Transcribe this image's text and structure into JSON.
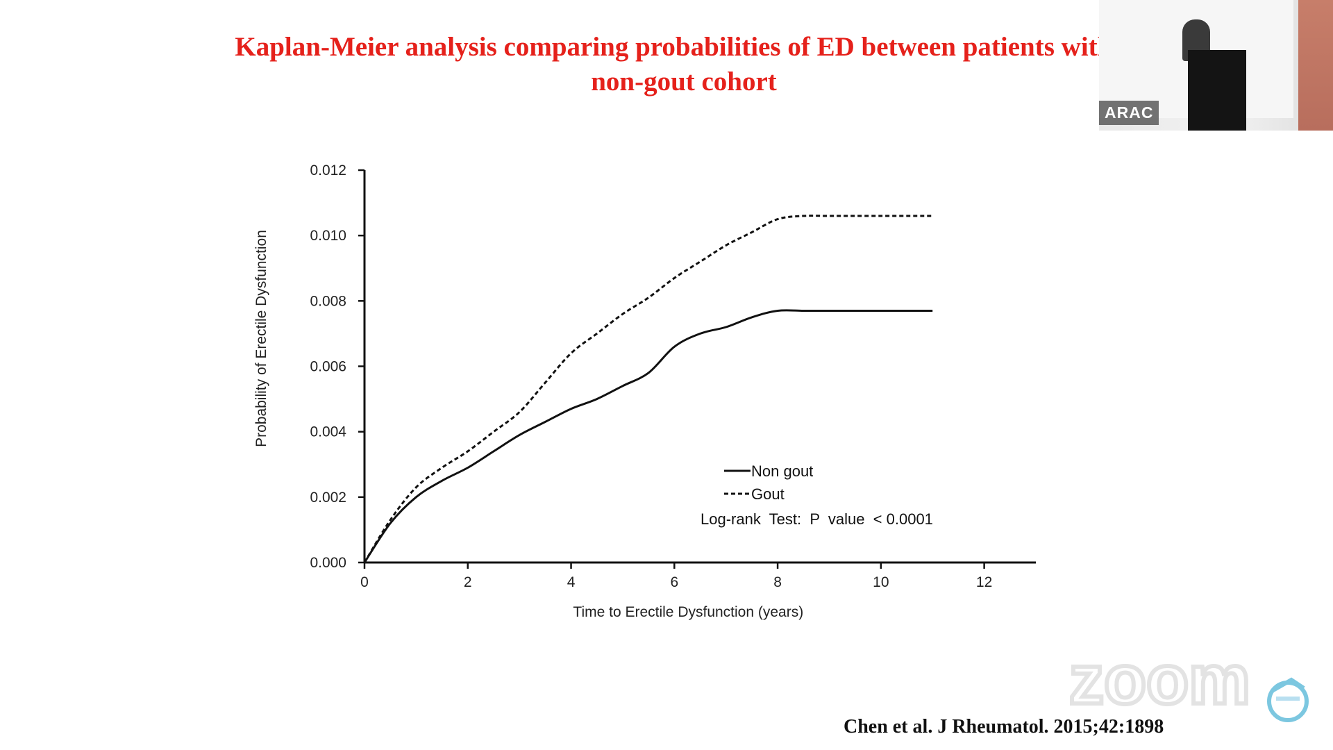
{
  "slide": {
    "title_line_1": "Kaplan-Meier analysis comparing probabilities of ED between patients with g",
    "title_line_2": "non-gout cohort",
    "citation": "Chen et al. J Rheumatol. 2015;42:1898",
    "title_color": "#e5211b"
  },
  "webcam": {
    "label": "ARAC"
  },
  "watermark": {
    "text": "zoom"
  },
  "chart_data": {
    "type": "line",
    "title": "",
    "xlabel": "Time to Erectile Dysfunction (years)",
    "ylabel": "Probability of Erectile Dysfunction",
    "xlim": [
      0,
      13
    ],
    "ylim": [
      0,
      0.012
    ],
    "x_ticks": [
      0,
      2,
      4,
      6,
      8,
      10,
      12
    ],
    "y_ticks": [
      0.0,
      0.002,
      0.004,
      0.006,
      0.008,
      0.01,
      0.012
    ],
    "x_tick_labels": [
      "0",
      "2",
      "4",
      "6",
      "8",
      "10",
      "12"
    ],
    "y_tick_labels": [
      "0.000",
      "0.002",
      "0.004",
      "0.006",
      "0.008",
      "0.010",
      "0.012"
    ],
    "grid": false,
    "legend_position": "bottom-right",
    "annotation": "Log-rank  Test:  P  value  < 0.0001",
    "series": [
      {
        "name": "Non gout",
        "style": "solid",
        "color": "#111111",
        "points": [
          [
            0,
            0
          ],
          [
            0.5,
            0.0012
          ],
          [
            1,
            0.002
          ],
          [
            1.5,
            0.0025
          ],
          [
            2,
            0.0029
          ],
          [
            2.5,
            0.0034
          ],
          [
            3,
            0.0039
          ],
          [
            3.5,
            0.0043
          ],
          [
            4,
            0.0047
          ],
          [
            4.5,
            0.005
          ],
          [
            5,
            0.0054
          ],
          [
            5.5,
            0.0058
          ],
          [
            6,
            0.0066
          ],
          [
            6.5,
            0.007
          ],
          [
            7,
            0.0072
          ],
          [
            7.5,
            0.0075
          ],
          [
            8,
            0.0077
          ],
          [
            8.5,
            0.0077
          ],
          [
            9,
            0.0077
          ],
          [
            10,
            0.0077
          ],
          [
            11,
            0.0077
          ]
        ]
      },
      {
        "name": "Gout",
        "style": "dashed",
        "color": "#111111",
        "points": [
          [
            0,
            0
          ],
          [
            0.5,
            0.0013
          ],
          [
            1,
            0.0023
          ],
          [
            1.5,
            0.0029
          ],
          [
            2,
            0.0034
          ],
          [
            2.5,
            0.004
          ],
          [
            3,
            0.0046
          ],
          [
            3.5,
            0.0055
          ],
          [
            4,
            0.0064
          ],
          [
            4.5,
            0.007
          ],
          [
            5,
            0.0076
          ],
          [
            5.5,
            0.0081
          ],
          [
            6,
            0.0087
          ],
          [
            6.5,
            0.0092
          ],
          [
            7,
            0.0097
          ],
          [
            7.5,
            0.0101
          ],
          [
            8,
            0.0105
          ],
          [
            8.5,
            0.0106
          ],
          [
            9,
            0.0106
          ],
          [
            10,
            0.0106
          ],
          [
            11,
            0.0106
          ]
        ]
      }
    ]
  }
}
